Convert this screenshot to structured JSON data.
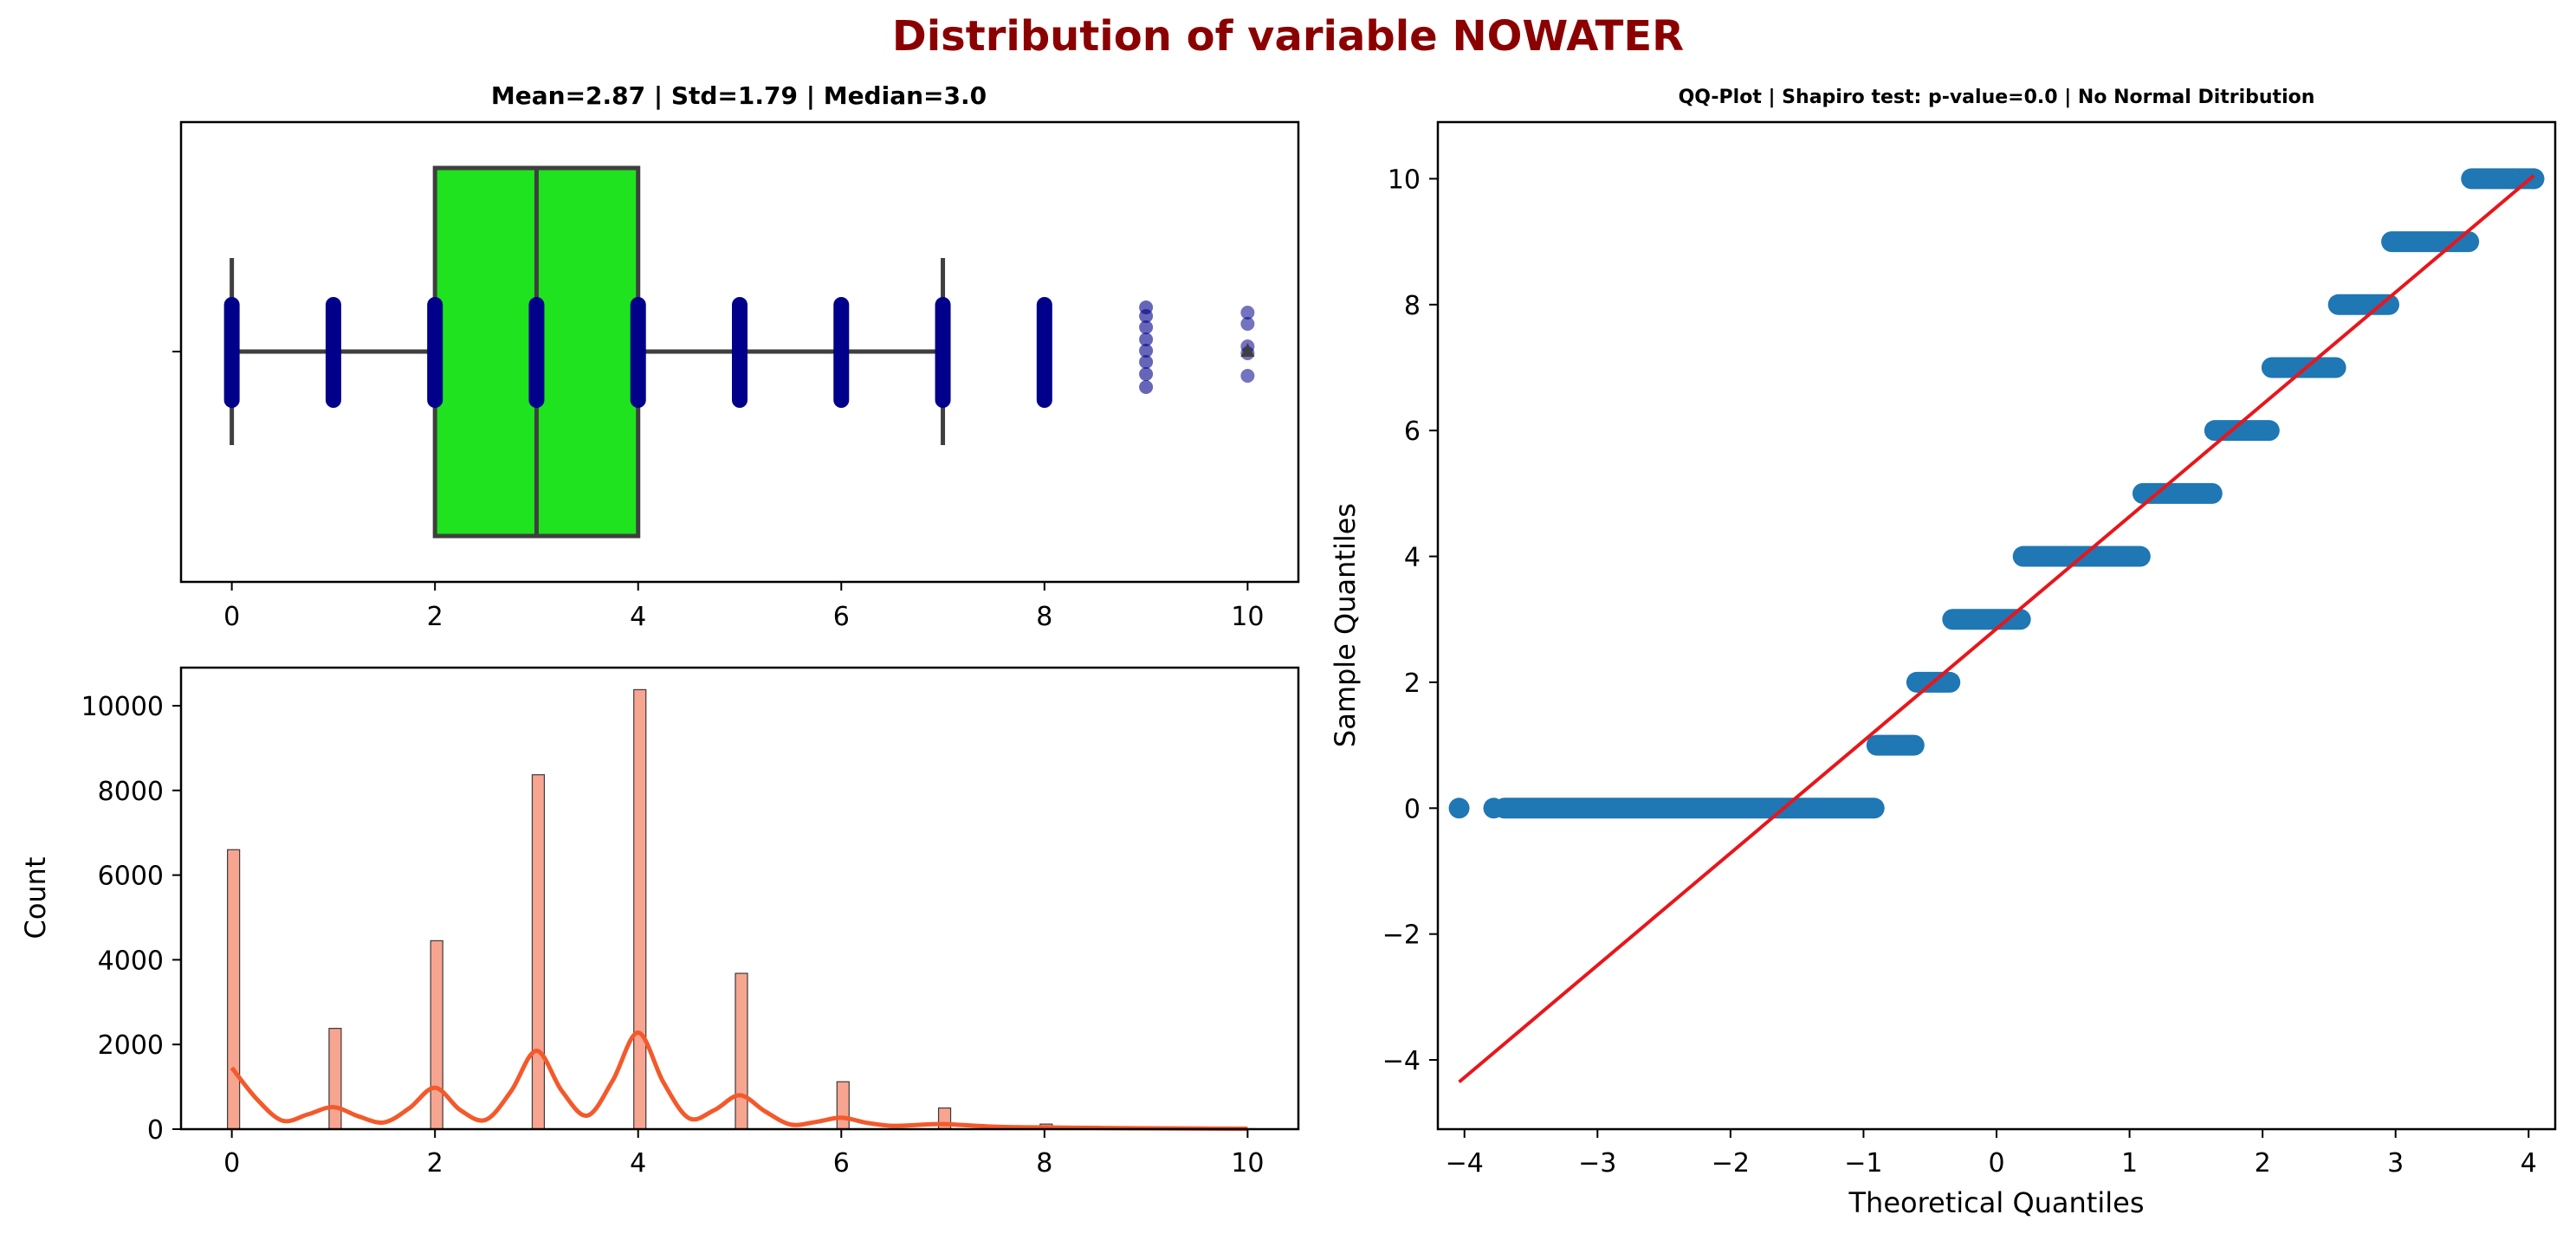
{
  "figure": {
    "title": "Distribution of variable NOWATER",
    "title_color": "#8b0000"
  },
  "chart_data": [
    {
      "type": "box",
      "title": "Mean=2.87 | Std=1.79 | Median=3.0",
      "stats": {
        "whisker_low": 0,
        "q1": 2,
        "median": 3,
        "q3": 4,
        "whisker_high": 7
      },
      "outliers": [
        8,
        9,
        10
      ],
      "strip_values": [
        0,
        1,
        2,
        3,
        4,
        5,
        6,
        7,
        8,
        9,
        10
      ],
      "mean": 2.87,
      "xlim": [
        -0.5,
        10.5
      ],
      "x_ticks": [
        0,
        2,
        4,
        6,
        8,
        10
      ],
      "box_color": "#1ee31e",
      "strip_color": "#00008b",
      "xlabel": "",
      "ylabel": ""
    },
    {
      "type": "histogram",
      "title": "",
      "bars": [
        {
          "x": 0,
          "count": 6600
        },
        {
          "x": 1,
          "count": 2380
        },
        {
          "x": 2,
          "count": 4450
        },
        {
          "x": 3,
          "count": 8370
        },
        {
          "x": 4,
          "count": 10380
        },
        {
          "x": 5,
          "count": 3680
        },
        {
          "x": 6,
          "count": 1120
        },
        {
          "x": 7,
          "count": 500
        },
        {
          "x": 8,
          "count": 120
        },
        {
          "x": 9,
          "count": 30
        },
        {
          "x": 10,
          "count": 10
        }
      ],
      "kde": {
        "x": [
          0,
          0.25,
          0.5,
          0.75,
          1,
          1.25,
          1.5,
          1.75,
          2,
          2.25,
          2.5,
          2.75,
          3,
          3.25,
          3.5,
          3.75,
          4,
          4.25,
          4.5,
          4.75,
          5,
          5.25,
          5.5,
          5.75,
          6,
          6.25,
          6.5,
          6.75,
          7,
          7.5,
          8,
          8.5,
          9,
          9.5,
          10
        ],
        "y": [
          1450,
          700,
          200,
          350,
          520,
          300,
          160,
          500,
          980,
          450,
          220,
          900,
          1850,
          900,
          320,
          1150,
          2280,
          1100,
          260,
          450,
          800,
          420,
          110,
          170,
          270,
          150,
          80,
          100,
          120,
          60,
          40,
          30,
          20,
          15,
          10
        ]
      },
      "xlim": [
        -0.5,
        10.5
      ],
      "ylim": [
        0,
        10900
      ],
      "x_ticks": [
        0,
        2,
        4,
        6,
        8,
        10
      ],
      "y_ticks": [
        0,
        2000,
        4000,
        6000,
        8000,
        10000
      ],
      "ylabel": "Count",
      "xlabel": "",
      "bar_color": "#f7a590",
      "kde_color": "#f4592b"
    },
    {
      "type": "scatter",
      "title": "QQ-Plot | Shapiro test: p-value=0.0 | No Normal Ditribution",
      "levels": [
        {
          "y": 0,
          "x_from": -4.04,
          "x_to": -0.92
        },
        {
          "y": 1,
          "x_from": -0.9,
          "x_to": -0.62
        },
        {
          "y": 2,
          "x_from": -0.6,
          "x_to": -0.35
        },
        {
          "y": 3,
          "x_from": -0.33,
          "x_to": 0.18
        },
        {
          "y": 4,
          "x_from": 0.2,
          "x_to": 1.08
        },
        {
          "y": 5,
          "x_from": 1.1,
          "x_to": 1.62
        },
        {
          "y": 6,
          "x_from": 1.64,
          "x_to": 2.05
        },
        {
          "y": 7,
          "x_from": 2.07,
          "x_to": 2.55
        },
        {
          "y": 8,
          "x_from": 2.57,
          "x_to": 2.95
        },
        {
          "y": 9,
          "x_from": 2.97,
          "x_to": 3.55
        },
        {
          "y": 10,
          "x_from": 3.57,
          "x_to": 4.04
        }
      ],
      "isolated_points": [
        {
          "x": -4.04,
          "y": 0
        },
        {
          "x": -3.78,
          "y": 0
        },
        {
          "x": 3.88,
          "y": 10
        },
        {
          "x": 4.04,
          "y": 10
        }
      ],
      "reference_line": {
        "x": [
          -4.04,
          4.04
        ],
        "y": [
          -4.35,
          10.05
        ]
      },
      "xlim": [
        -4.2,
        4.2
      ],
      "ylim": [
        -5.1,
        10.9
      ],
      "x_ticks": [
        -4,
        -3,
        -2,
        -1,
        0,
        1,
        2,
        3,
        4
      ],
      "y_ticks": [
        -4,
        -2,
        0,
        2,
        4,
        6,
        8,
        10
      ],
      "xlabel": "Theoretical Quantiles",
      "ylabel": "Sample Quantiles",
      "point_color": "#1f77b4",
      "line_color": "#e8161b"
    }
  ]
}
